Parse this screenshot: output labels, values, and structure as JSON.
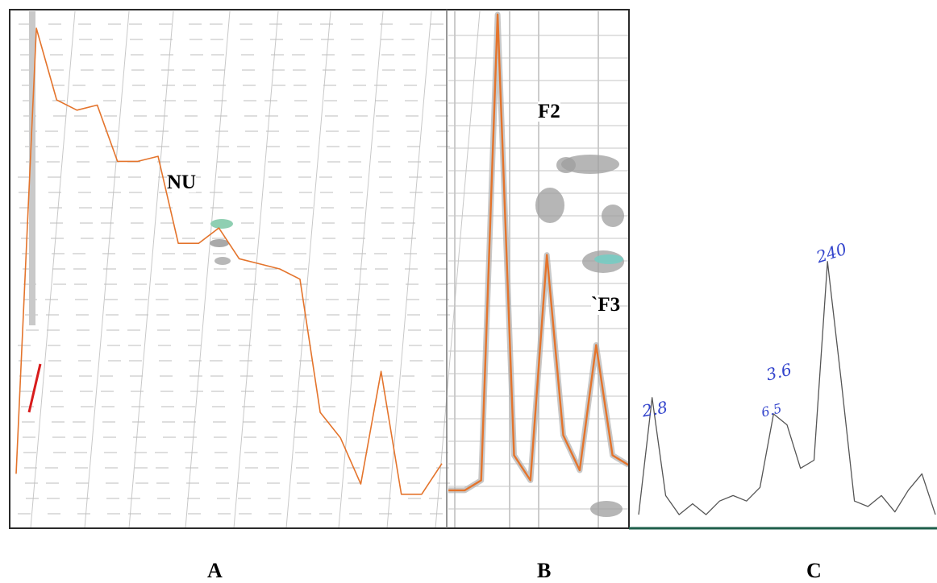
{
  "panels": {
    "a": {
      "letter": "A",
      "annotation": "NU"
    },
    "b": {
      "letter": "B",
      "peak_labels": [
        "F2",
        "`F3"
      ]
    },
    "c": {
      "letter": "C",
      "peak_labels": [
        "2.8",
        "3.6",
        "6.5",
        "240"
      ]
    }
  },
  "colors": {
    "trace": "#e4742c",
    "grid": "#c8c8c8",
    "trace_c": "#555555",
    "ink": "#3344cc",
    "baseline": "#1d5e4a"
  },
  "chart_data": [
    {
      "type": "line",
      "panel": "A",
      "title": "",
      "xlabel": "",
      "ylabel": "",
      "grid": true,
      "series": [
        {
          "values": [
            0.1,
            0.97,
            0.83,
            0.81,
            0.82,
            0.71,
            0.71,
            0.72,
            0.55,
            0.55,
            0.58,
            0.52,
            0.51,
            0.5,
            0.48,
            0.22,
            0.17,
            0.08,
            0.3,
            0.06,
            0.06,
            0.12
          ]
        }
      ]
    },
    {
      "type": "line",
      "panel": "B",
      "title": "",
      "xlabel": "",
      "ylabel": "",
      "grid": true,
      "series": [
        {
          "values": [
            0.05,
            0.05,
            0.07,
            1.0,
            0.12,
            0.07,
            0.52,
            0.16,
            0.09,
            0.34,
            0.12,
            0.1
          ]
        }
      ]
    },
    {
      "type": "line",
      "panel": "C",
      "title": "",
      "xlabel": "",
      "ylabel": "",
      "grid": false,
      "series": [
        {
          "values": [
            0.05,
            0.48,
            0.12,
            0.05,
            0.09,
            0.05,
            0.1,
            0.12,
            0.1,
            0.15,
            0.42,
            0.38,
            0.22,
            0.25,
            0.98,
            0.55,
            0.1,
            0.08,
            0.12,
            0.06,
            0.14,
            0.2,
            0.05
          ]
        }
      ]
    }
  ]
}
